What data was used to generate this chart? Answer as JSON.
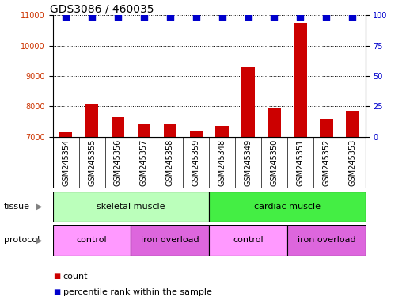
{
  "title": "GDS3086 / 460035",
  "samples": [
    "GSM245354",
    "GSM245355",
    "GSM245356",
    "GSM245357",
    "GSM245358",
    "GSM245359",
    "GSM245348",
    "GSM245349",
    "GSM245350",
    "GSM245351",
    "GSM245352",
    "GSM245353"
  ],
  "counts": [
    7150,
    8100,
    7650,
    7450,
    7430,
    7200,
    7350,
    9300,
    7950,
    10750,
    7600,
    7850
  ],
  "percentile_ranks": [
    99,
    99,
    99,
    99,
    99,
    99,
    99,
    99,
    99,
    99,
    99,
    99
  ],
  "bar_color": "#cc0000",
  "dot_color": "#0000cc",
  "ylim_left": [
    7000,
    11000
  ],
  "ylim_right": [
    0,
    100
  ],
  "yticks_left": [
    7000,
    8000,
    9000,
    10000,
    11000
  ],
  "yticks_right": [
    0,
    25,
    50,
    75,
    100
  ],
  "tissue_groups": [
    {
      "label": "skeletal muscle",
      "start": 0,
      "end": 6,
      "color": "#bbffbb"
    },
    {
      "label": "cardiac muscle",
      "start": 6,
      "end": 12,
      "color": "#44ee44"
    }
  ],
  "protocol_groups": [
    {
      "label": "control",
      "start": 0,
      "end": 3,
      "color": "#ff99ff"
    },
    {
      "label": "iron overload",
      "start": 3,
      "end": 6,
      "color": "#dd66dd"
    },
    {
      "label": "control",
      "start": 6,
      "end": 9,
      "color": "#ff99ff"
    },
    {
      "label": "iron overload",
      "start": 9,
      "end": 12,
      "color": "#dd66dd"
    }
  ],
  "legend_count_color": "#cc0000",
  "legend_percentile_color": "#0000cc",
  "background_color": "#ffffff",
  "tick_label_color_left": "#cc3300",
  "tick_label_color_right": "#0000cc",
  "bar_width": 0.5,
  "dot_size": 40,
  "dot_marker": "s",
  "title_fontsize": 10,
  "tick_fontsize": 7,
  "sample_label_fontsize": 7,
  "label_fontsize": 8,
  "annotation_fontsize": 8,
  "xtick_label_color": "#333333",
  "xtick_bg_color": "#cccccc"
}
